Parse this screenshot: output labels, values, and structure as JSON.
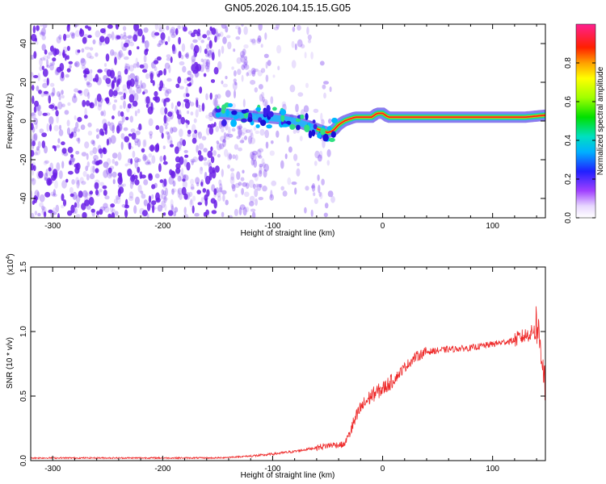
{
  "figure_title": "GN05.2026.104.15.15.G05",
  "colors": {
    "snr_line": "#ee2a2a",
    "frame": "#000000",
    "spectrogram_scatter": "#7a3cf0"
  },
  "chart_data": [
    {
      "type": "heatmap",
      "name": "spectrogram",
      "title": "GN05.2026.104.15.15.G05",
      "xlabel": "Height of straight line (km)",
      "ylabel": "Frequency (Hz)",
      "xlim": [
        -320,
        148
      ],
      "ylim": [
        -50,
        50
      ],
      "x_ticks": [
        -300,
        -200,
        -100,
        0,
        100
      ],
      "x_tick_labels": [
        "-300",
        "-200",
        "-100",
        "0",
        "100"
      ],
      "y_ticks": [
        -40,
        -20,
        0,
        20,
        40
      ],
      "y_tick_labels": [
        "-40",
        "-20",
        "0",
        "20",
        "40"
      ],
      "ridge_frequency_hz": [
        [
          -150,
          4
        ],
        [
          -130,
          3
        ],
        [
          -110,
          2
        ],
        [
          -90,
          1
        ],
        [
          -80,
          0
        ],
        [
          -70,
          -2
        ],
        [
          -60,
          -4
        ],
        [
          -50,
          -6
        ],
        [
          -45,
          -5
        ],
        [
          -40,
          -2
        ],
        [
          -35,
          0
        ],
        [
          -30,
          1
        ],
        [
          -25,
          2
        ],
        [
          -10,
          2
        ],
        [
          -5,
          4
        ],
        [
          0,
          4
        ],
        [
          5,
          2
        ],
        [
          60,
          2
        ],
        [
          100,
          2
        ],
        [
          130,
          2
        ],
        [
          148,
          3
        ]
      ],
      "colorbar": {
        "label": "Normalized spectral amplitude",
        "range": [
          0,
          1
        ],
        "ticks": [
          0,
          0.2,
          0.4,
          0.6,
          0.8
        ],
        "tick_labels": [
          "0.0",
          "0.2",
          "0.4",
          "0.6",
          "0.8"
        ]
      }
    },
    {
      "type": "line",
      "name": "snr",
      "xlabel": "Height of straight line (km)",
      "ylabel": "SNR (10 * v/v)",
      "y_multiplier": "(x10",
      "y_multiplier_exp": "4",
      "y_multiplier_close": ")",
      "xlim": [
        -320,
        148
      ],
      "ylim": [
        0,
        1.5
      ],
      "x_ticks": [
        -300,
        -200,
        -100,
        0,
        100
      ],
      "x_tick_labels": [
        "-300",
        "-200",
        "-100",
        "0",
        "100"
      ],
      "y_ticks": [
        0,
        0.5,
        1.0,
        1.5
      ],
      "y_tick_labels": [
        "0.0",
        "0.5",
        "1.0",
        "1.5"
      ],
      "series": [
        {
          "name": "SNR",
          "points": [
            [
              -320,
              0.02
            ],
            [
              -250,
              0.02
            ],
            [
              -200,
              0.02
            ],
            [
              -150,
              0.02
            ],
            [
              -130,
              0.03
            ],
            [
              -110,
              0.04
            ],
            [
              -100,
              0.05
            ],
            [
              -80,
              0.07
            ],
            [
              -60,
              0.1
            ],
            [
              -45,
              0.12
            ],
            [
              -35,
              0.12
            ],
            [
              -28,
              0.25
            ],
            [
              -20,
              0.4
            ],
            [
              -10,
              0.5
            ],
            [
              0,
              0.55
            ],
            [
              10,
              0.62
            ],
            [
              20,
              0.72
            ],
            [
              30,
              0.8
            ],
            [
              40,
              0.84
            ],
            [
              60,
              0.86
            ],
            [
              80,
              0.87
            ],
            [
              100,
              0.9
            ],
            [
              120,
              0.93
            ],
            [
              135,
              0.98
            ],
            [
              140,
              1.05
            ],
            [
              145,
              0.8
            ],
            [
              148,
              0.55
            ]
          ]
        }
      ]
    }
  ]
}
